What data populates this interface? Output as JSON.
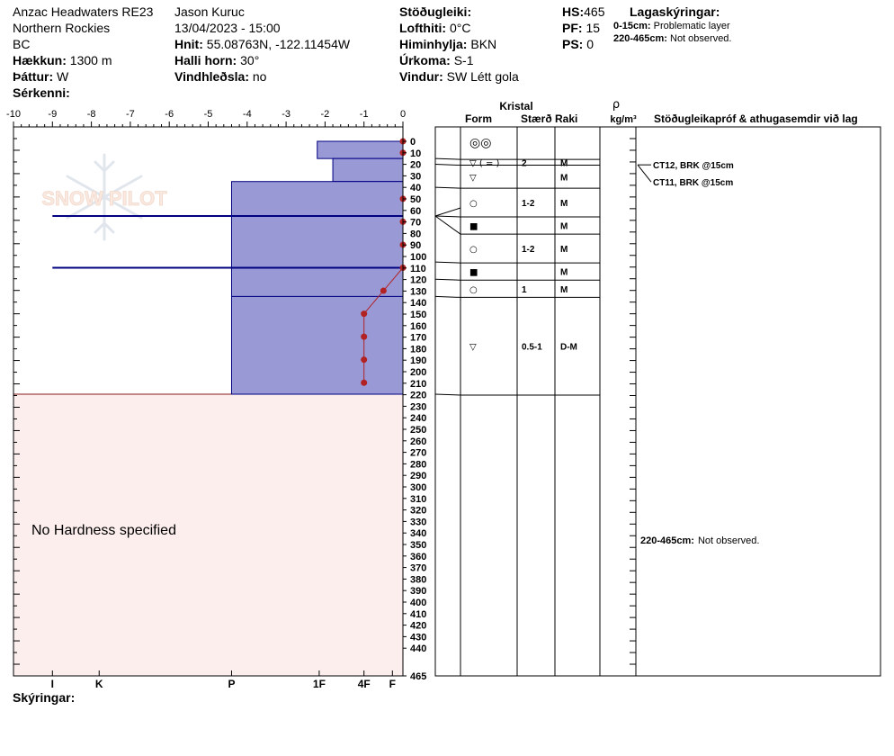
{
  "header": {
    "location": "Anzac Headwaters RE23",
    "region": "Northern Rockies",
    "province": "BC",
    "elevation_label": "Hækkun:",
    "elevation": "1300 m",
    "aspect_label": "Þáttur:",
    "aspect": "W",
    "special_label": "Sérkenni:",
    "observer": "Jason Kuruc",
    "datetime": "13/04/2023 - 15:00",
    "coords_label": "Hnit:",
    "coords": "55.08763N, -122.11454W",
    "slope_label": "Halli horn:",
    "slope": "30°",
    "wind_loading_label": "Vindhleðsla:",
    "wind_loading": "no",
    "stability_label": "Stöðugleiki:",
    "air_temp_label": "Lofthiti:",
    "air_temp": "0°C",
    "sky_label": "Himinhylja:",
    "sky": "BKN",
    "precip_label": "Úrkoma:",
    "precip": "S-1",
    "wind_label": "Vindur:",
    "wind": "SW  Létt gola",
    "hs_label": "HS:",
    "hs": "465",
    "pf_label": "PF:",
    "pf": "15",
    "ps_label": "PS:",
    "ps": "0",
    "layer_notes_label": "Lagaskýringar:",
    "layer_notes": [
      {
        "range": "0-15cm:",
        "text": "Problematic layer"
      },
      {
        "range": "220-465cm:",
        "text": "Not observed."
      }
    ]
  },
  "footer": {
    "notes_label": "Skýringar:"
  },
  "watermark": "SNOW PILOT",
  "no_hardness_text": "No Hardness specified",
  "table_headers": {
    "crystal": "Kristal",
    "form": "Form",
    "size": "Stærð",
    "moisture": "Raki",
    "rho": "ρ",
    "density_unit": "kg/m³",
    "stability_notes": "Stöðugleikapróf & athugasemdir við lag"
  },
  "stability_tests": [
    {
      "label": "CT12, BRK @15cm",
      "depth_cm": 15
    },
    {
      "label": "CT11, BRK @15cm",
      "depth_cm": 15
    }
  ],
  "deep_note": {
    "range": "220-465cm:",
    "text": "Not observed."
  },
  "colors": {
    "layer_fill": "#9999d6",
    "layer_edge": "#000080",
    "temp_line": "#b22222",
    "unobserved_fill": "#fdeeee",
    "unobserved_edge": "#8b1a1a"
  },
  "chart_data": {
    "type": "snow_profile",
    "hardness_axis": {
      "range": [
        -10,
        0
      ],
      "ticks": [
        "-10",
        "-9",
        "-8",
        "-7",
        "-6",
        "-5",
        "-4",
        "-3",
        "-2",
        "-1",
        "0"
      ]
    },
    "hardness_labels": [
      {
        "label": "I",
        "value": -9
      },
      {
        "label": "K",
        "value": -7.8
      },
      {
        "label": "P",
        "value": -4.4
      },
      {
        "label": "1F",
        "value": -2.15
      },
      {
        "label": "4F",
        "value": -1.0
      },
      {
        "label": "F",
        "value": -0.27
      }
    ],
    "depth_axis": {
      "range": [
        0,
        465
      ],
      "unit": "cm"
    },
    "depth_ticks": [
      "0",
      "10",
      "20",
      "30",
      "40",
      "50",
      "60",
      "70",
      "80",
      "90",
      "100",
      "110",
      "120",
      "130",
      "140",
      "150",
      "160",
      "170",
      "180",
      "190",
      "200",
      "210",
      "220",
      "230",
      "240",
      "250",
      "260",
      "270",
      "280",
      "290",
      "300",
      "310",
      "320",
      "330",
      "340",
      "350",
      "360",
      "370",
      "380",
      "390",
      "400",
      "410",
      "420",
      "430",
      "440",
      "465"
    ],
    "hardness_layers": [
      {
        "top": 0,
        "bottom": 15,
        "hardness": -2.2
      },
      {
        "top": 15,
        "bottom": 35,
        "hardness": -1.8
      },
      {
        "top": 35,
        "bottom": 135,
        "hardness": -4.4
      },
      {
        "top": 135,
        "bottom": 220,
        "hardness": -4.4
      }
    ],
    "weak_layers": [
      {
        "depth": 65,
        "hardness": -9
      },
      {
        "depth": 110,
        "hardness": -9
      }
    ],
    "temperature_profile": [
      {
        "depth": 0,
        "temp": 0
      },
      {
        "depth": 10,
        "temp": 0
      },
      {
        "depth": 50,
        "temp": 0
      },
      {
        "depth": 70,
        "temp": 0
      },
      {
        "depth": 90,
        "temp": 0
      },
      {
        "depth": 110,
        "temp": 0
      },
      {
        "depth": 130,
        "temp": -0.5
      },
      {
        "depth": 150,
        "temp": -1
      },
      {
        "depth": 170,
        "temp": -1
      },
      {
        "depth": 190,
        "temp": -1
      },
      {
        "depth": 210,
        "temp": -1
      }
    ],
    "layers": [
      {
        "top": 0,
        "bottom": 15,
        "form": "◎◎",
        "size": "",
        "moisture": ""
      },
      {
        "top": 15,
        "bottom": 20,
        "form": "▽ ( = )",
        "size": "2",
        "moisture": "M"
      },
      {
        "top": 20,
        "bottom": 40,
        "form": "▽",
        "size": "",
        "moisture": "M"
      },
      {
        "top": 40,
        "bottom": 65,
        "form": "○",
        "size": "1-2",
        "moisture": "M"
      },
      {
        "top": 65,
        "bottom": 80,
        "form": "■",
        "size": "",
        "moisture": "M"
      },
      {
        "top": 80,
        "bottom": 105,
        "form": "○",
        "size": "1-2",
        "moisture": "M"
      },
      {
        "top": 105,
        "bottom": 120,
        "form": "■",
        "size": "",
        "moisture": "M"
      },
      {
        "top": 120,
        "bottom": 135,
        "form": "○",
        "size": "1",
        "moisture": "M"
      },
      {
        "top": 135,
        "bottom": 220,
        "form": "▽",
        "size": "0.5-1",
        "moisture": "D-M"
      }
    ]
  }
}
